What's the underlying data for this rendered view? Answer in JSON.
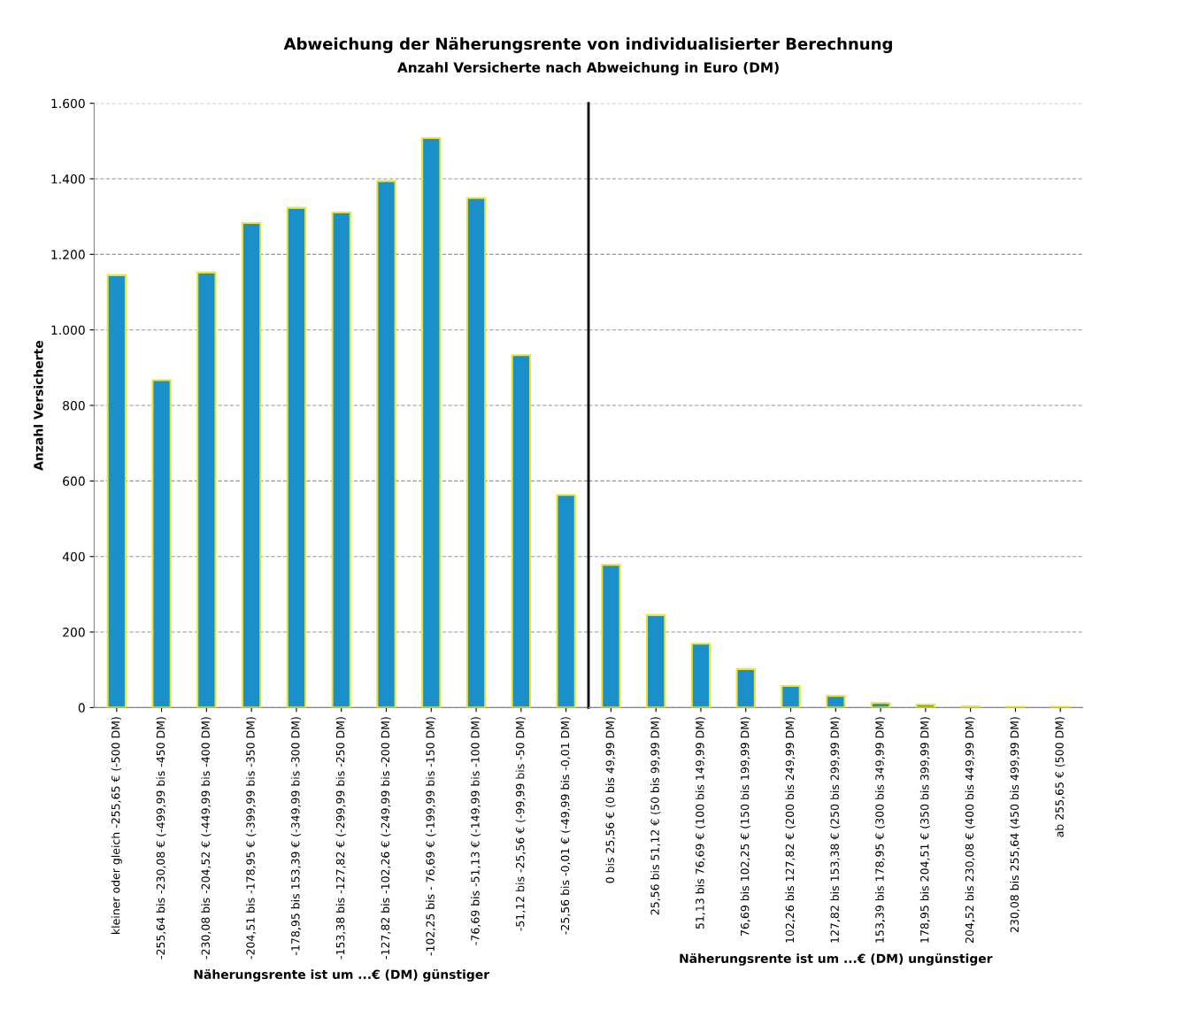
{
  "chart_data": [
    {
      "type": "bar",
      "title": "Abweichung der Näherungsrente von individualisierter Berechnung",
      "subtitle": "Anzahl Versicherte nach Abweichung in Euro (DM)",
      "ylabel": "Anzahl Versicherte",
      "xlabel": "Näherungsrente ist um ...€ (DM) günstiger",
      "categories": [
        "kleiner oder gleich -255,65 € (-500 DM)",
        "-255,64 bis -230,08 € (-499,99 bis -450 DM)",
        "-230,08 bis -204,52 € (-449,99 bis -400 DM)",
        "-204,51 bis -178,95 € (-399,99 bis -350 DM)",
        "-178,95 bis 153,39 € (-349,99 bis -300 DM)",
        "-153,38 bis -127,82 € (-299,99 bis -250 DM)",
        "-127,82 bis -102,26 € (-249,99 bis -200 DM)",
        "-102,25 bis - 76,69 € (-199,99 bis -150 DM)",
        "-76,69 bis -51,13 € (-149,99 bis -100 DM)",
        "-51,12 bis -25,56 € (-99,99 bis -50 DM)",
        "-25,56 bis -0,01 € (-49,99 bis -0,01 DM)"
      ],
      "values": [
        1145,
        867,
        1152,
        1283,
        1323,
        1311,
        1394,
        1508,
        1349,
        933,
        563
      ],
      "color": "#1a8fc9",
      "ylim": [
        0,
        1600
      ],
      "yticks": [
        {
          "value": 0,
          "label": "0"
        },
        {
          "value": 200,
          "label": "200"
        },
        {
          "value": 400,
          "label": "400"
        },
        {
          "value": 600,
          "label": "600"
        },
        {
          "value": 800,
          "label": "800"
        },
        {
          "value": 1000,
          "label": "1.000"
        },
        {
          "value": 1200,
          "label": "1.200"
        },
        {
          "value": 1400,
          "label": "1.400"
        },
        {
          "value": 1600,
          "label": "1.600"
        }
      ],
      "grid": "y",
      "legend": false
    },
    {
      "type": "bar",
      "xlabel": "Näherungsrente ist um ...€ (DM) ungünstiger",
      "categories": [
        "0 bis 25,56 € (0 bis 49,99 DM)",
        "25,56 bis 51,12 € (50 bis 99,99 DM)",
        "51,13 bis 76,69 € (100 bis 149,99 DM)",
        "76,69 bis 102,25 € (150 bis 199,99 DM)",
        "102,26 bis 127,82 € (200 bis 249,99 DM)",
        "127,82 bis 153,38 € (250 bis 299,99 DM)",
        "153,39 bis 178,95 € (300 bis 349,99 DM)",
        "178,95 bis 204,51 € (350 bis 399,99 DM)",
        "204,52 bis 230,08 € (400 bis 449,99 DM)",
        "230,08 bis 255,64 (450 bis 499,99 DM)",
        "ab 255,65 € (500 DM)"
      ],
      "values": [
        378,
        245,
        169,
        102,
        57,
        31,
        12,
        8,
        3,
        2,
        2
      ],
      "color": "#1a8fc9",
      "ylim": [
        0,
        1600
      ],
      "yticks": [
        {
          "value": 0,
          "label": null
        },
        {
          "value": 200,
          "label": null
        },
        {
          "value": 400,
          "label": null
        },
        {
          "value": 600,
          "label": null
        },
        {
          "value": 800,
          "label": null
        },
        {
          "value": 1000,
          "label": null
        },
        {
          "value": 1200,
          "label": null
        },
        {
          "value": 1400,
          "label": null
        },
        {
          "value": 1600,
          "label": null
        }
      ],
      "grid": "y",
      "legend": false,
      "tick_labels": "x"
    }
  ]
}
